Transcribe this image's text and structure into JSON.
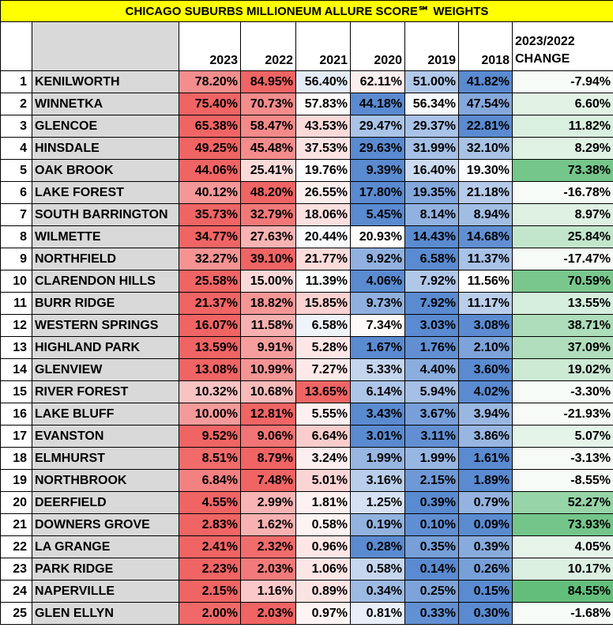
{
  "title": "CHICAGO SUBURBS MILLIONEUM ALLURE SCORE℠ WEIGHTS",
  "header": {
    "years": [
      "2023",
      "2022",
      "2021",
      "2020",
      "2019",
      "2018"
    ],
    "change_lines": [
      "2023/2022",
      "CHANGE"
    ]
  },
  "rows": [
    [
      "1",
      "KENILWORTH",
      "78.20%",
      "84.95%",
      "56.40%",
      "62.11%",
      "51.00%",
      "41.82%",
      "-7.94%"
    ],
    [
      "2",
      "WINNETKA",
      "75.40%",
      "70.73%",
      "57.83%",
      "44.18%",
      "56.34%",
      "47.54%",
      "6.60%"
    ],
    [
      "3",
      "GLENCOE",
      "65.38%",
      "58.47%",
      "43.53%",
      "29.47%",
      "29.37%",
      "22.81%",
      "11.82%"
    ],
    [
      "4",
      "HINSDALE",
      "49.25%",
      "45.48%",
      "37.53%",
      "29.63%",
      "31.99%",
      "32.10%",
      "8.29%"
    ],
    [
      "5",
      "OAK BROOK",
      "44.06%",
      "25.41%",
      "19.76%",
      "9.39%",
      "16.40%",
      "19.30%",
      "73.38%"
    ],
    [
      "6",
      "LAKE FOREST",
      "40.12%",
      "48.20%",
      "26.55%",
      "17.80%",
      "19.35%",
      "21.18%",
      "-16.78%"
    ],
    [
      "7",
      "SOUTH BARRINGTON",
      "35.73%",
      "32.79%",
      "18.06%",
      "5.45%",
      "8.14%",
      "8.94%",
      "8.97%"
    ],
    [
      "8",
      "WILMETTE",
      "34.77%",
      "27.63%",
      "20.44%",
      "20.93%",
      "14.43%",
      "14.68%",
      "25.84%"
    ],
    [
      "9",
      "NORTHFIELD",
      "32.27%",
      "39.10%",
      "21.77%",
      "9.92%",
      "6.58%",
      "11.37%",
      "-17.47%"
    ],
    [
      "10",
      "CLARENDON HILLS",
      "25.58%",
      "15.00%",
      "11.39%",
      "4.06%",
      "7.92%",
      "11.56%",
      "70.59%"
    ],
    [
      "11",
      "BURR RIDGE",
      "21.37%",
      "18.82%",
      "15.85%",
      "9.73%",
      "7.92%",
      "11.17%",
      "13.55%"
    ],
    [
      "12",
      "WESTERN SPRINGS",
      "16.07%",
      "11.58%",
      "6.58%",
      "7.34%",
      "3.03%",
      "3.08%",
      "38.71%"
    ],
    [
      "13",
      "HIGHLAND PARK",
      "13.59%",
      "9.91%",
      "5.28%",
      "1.67%",
      "1.76%",
      "2.10%",
      "37.09%"
    ],
    [
      "14",
      "GLENVIEW",
      "13.08%",
      "10.99%",
      "7.27%",
      "5.33%",
      "4.40%",
      "3.60%",
      "19.02%"
    ],
    [
      "15",
      "RIVER FOREST",
      "10.32%",
      "10.68%",
      "13.65%",
      "6.14%",
      "5.94%",
      "4.02%",
      "-3.30%"
    ],
    [
      "16",
      "LAKE BLUFF",
      "10.00%",
      "12.81%",
      "5.55%",
      "3.43%",
      "3.67%",
      "3.94%",
      "-21.93%"
    ],
    [
      "17",
      "EVANSTON",
      "9.52%",
      "9.06%",
      "6.64%",
      "3.01%",
      "3.11%",
      "3.86%",
      "5.07%"
    ],
    [
      "18",
      "ELMHURST",
      "8.51%",
      "8.79%",
      "3.24%",
      "1.99%",
      "1.99%",
      "1.61%",
      "-3.13%"
    ],
    [
      "19",
      "NORTHBROOK",
      "6.84%",
      "7.48%",
      "5.01%",
      "3.16%",
      "2.15%",
      "1.89%",
      "-8.55%"
    ],
    [
      "20",
      "DEERFIELD",
      "4.55%",
      "2.99%",
      "1.81%",
      "1.25%",
      "0.39%",
      "0.79%",
      "52.27%"
    ],
    [
      "21",
      "DOWNERS GROVE",
      "2.83%",
      "1.62%",
      "0.58%",
      "0.19%",
      "0.10%",
      "0.09%",
      "73.93%"
    ],
    [
      "22",
      "LA GRANGE",
      "2.41%",
      "2.32%",
      "0.96%",
      "0.28%",
      "0.35%",
      "0.39%",
      "4.05%"
    ],
    [
      "23",
      "PARK RIDGE",
      "2.23%",
      "2.03%",
      "1.06%",
      "0.58%",
      "0.14%",
      "0.26%",
      "10.17%"
    ],
    [
      "24",
      "NAPERVILLE",
      "2.15%",
      "1.16%",
      "0.89%",
      "0.34%",
      "0.25%",
      "0.15%",
      "84.55%"
    ],
    [
      "25",
      "GLEN ELLYN",
      "2.00%",
      "2.03%",
      "0.97%",
      "0.81%",
      "0.33%",
      "0.30%",
      "-1.68%"
    ]
  ]
}
